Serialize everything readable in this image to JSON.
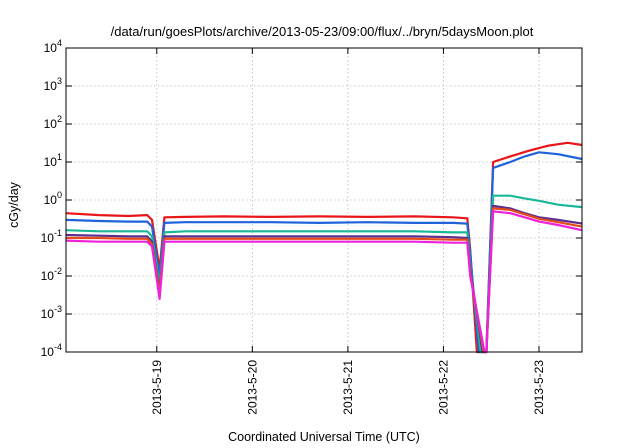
{
  "chart_data": {
    "type": "line",
    "title": "/data/run/goesPlots/archive/2013-05-23/09:00/flux/../bryn/5daysMoon.plot",
    "xlabel": "Coordinated Universal Time (UTC)",
    "ylabel": "cGy/day",
    "yscale": "log",
    "ylim": [
      0.0001,
      10000
    ],
    "xlim": [
      -0.95,
      4.45
    ],
    "y_ticks": [
      {
        "base": "10",
        "exp": "-4",
        "value": 0.0001
      },
      {
        "base": "10",
        "exp": "-3",
        "value": 0.001
      },
      {
        "base": "10",
        "exp": "-2",
        "value": 0.01
      },
      {
        "base": "10",
        "exp": "-1",
        "value": 0.1
      },
      {
        "base": "10",
        "exp": "0",
        "value": 1
      },
      {
        "base": "10",
        "exp": "1",
        "value": 10
      },
      {
        "base": "10",
        "exp": "2",
        "value": 100
      },
      {
        "base": "10",
        "exp": "3",
        "value": 1000
      },
      {
        "base": "10",
        "exp": "4",
        "value": 10000
      }
    ],
    "x_ticks": [
      {
        "label": "2013-5-19",
        "value": 0
      },
      {
        "label": "2013-5-20",
        "value": 1
      },
      {
        "label": "2013-5-21",
        "value": 2
      },
      {
        "label": "2013-5-22",
        "value": 3
      },
      {
        "label": "2013-5-23",
        "value": 4
      }
    ],
    "grid": true,
    "series": [
      {
        "color": "#e8161a",
        "points": [
          [
            -0.95,
            0.45
          ],
          [
            -0.6,
            0.4
          ],
          [
            -0.3,
            0.38
          ],
          [
            -0.1,
            0.4
          ],
          [
            -0.05,
            0.3
          ],
          [
            0.03,
            0.015
          ],
          [
            0.08,
            0.35
          ],
          [
            0.3,
            0.36
          ],
          [
            0.7,
            0.37
          ],
          [
            1.2,
            0.36
          ],
          [
            1.7,
            0.37
          ],
          [
            2.2,
            0.36
          ],
          [
            2.7,
            0.37
          ],
          [
            3.1,
            0.35
          ],
          [
            3.25,
            0.33
          ],
          [
            3.28,
            0.05
          ],
          [
            3.35,
            0.0001
          ],
          [
            3.45,
            0.0001
          ],
          [
            3.52,
            10
          ],
          [
            3.7,
            14
          ],
          [
            3.9,
            20
          ],
          [
            4.1,
            27
          ],
          [
            4.3,
            32
          ],
          [
            4.45,
            28
          ]
        ]
      },
      {
        "color": "#1f63db",
        "points": [
          [
            -0.95,
            0.3
          ],
          [
            -0.6,
            0.28
          ],
          [
            -0.3,
            0.27
          ],
          [
            -0.1,
            0.27
          ],
          [
            -0.05,
            0.2
          ],
          [
            0.03,
            0.01
          ],
          [
            0.08,
            0.25
          ],
          [
            0.3,
            0.26
          ],
          [
            0.7,
            0.26
          ],
          [
            1.2,
            0.26
          ],
          [
            1.7,
            0.25
          ],
          [
            2.2,
            0.26
          ],
          [
            2.7,
            0.25
          ],
          [
            3.1,
            0.25
          ],
          [
            3.25,
            0.24
          ],
          [
            3.28,
            0.04
          ],
          [
            3.37,
            0.0001
          ],
          [
            3.45,
            0.0001
          ],
          [
            3.52,
            7
          ],
          [
            3.7,
            10
          ],
          [
            3.85,
            14
          ],
          [
            4.0,
            18
          ],
          [
            4.2,
            16
          ],
          [
            4.45,
            12
          ]
        ]
      },
      {
        "color": "#1bb898",
        "points": [
          [
            -0.95,
            0.16
          ],
          [
            -0.6,
            0.15
          ],
          [
            -0.3,
            0.15
          ],
          [
            -0.1,
            0.15
          ],
          [
            -0.05,
            0.11
          ],
          [
            0.03,
            0.006
          ],
          [
            0.08,
            0.14
          ],
          [
            0.3,
            0.15
          ],
          [
            0.7,
            0.15
          ],
          [
            1.2,
            0.15
          ],
          [
            1.7,
            0.15
          ],
          [
            2.2,
            0.15
          ],
          [
            2.7,
            0.15
          ],
          [
            3.1,
            0.14
          ],
          [
            3.25,
            0.14
          ],
          [
            3.28,
            0.02
          ],
          [
            3.39,
            0.0001
          ],
          [
            3.45,
            0.0001
          ],
          [
            3.52,
            1.3
          ],
          [
            3.7,
            1.3
          ],
          [
            3.85,
            1.1
          ],
          [
            4.0,
            0.95
          ],
          [
            4.2,
            0.75
          ],
          [
            4.45,
            0.65
          ]
        ]
      },
      {
        "color": "#5b2f8c",
        "points": [
          [
            -0.95,
            0.12
          ],
          [
            -0.6,
            0.115
          ],
          [
            -0.3,
            0.11
          ],
          [
            -0.1,
            0.11
          ],
          [
            -0.05,
            0.08
          ],
          [
            0.03,
            0.004
          ],
          [
            0.08,
            0.11
          ],
          [
            0.3,
            0.11
          ],
          [
            0.7,
            0.11
          ],
          [
            1.2,
            0.11
          ],
          [
            1.7,
            0.11
          ],
          [
            2.2,
            0.11
          ],
          [
            2.7,
            0.11
          ],
          [
            3.1,
            0.105
          ],
          [
            3.25,
            0.1
          ],
          [
            3.28,
            0.015
          ],
          [
            3.41,
            0.0001
          ],
          [
            3.45,
            0.0001
          ],
          [
            3.52,
            0.7
          ],
          [
            3.7,
            0.6
          ],
          [
            3.85,
            0.45
          ],
          [
            4.0,
            0.35
          ],
          [
            4.2,
            0.3
          ],
          [
            4.45,
            0.24
          ]
        ]
      },
      {
        "color": "#e84a1a",
        "points": [
          [
            -0.95,
            0.1
          ],
          [
            -0.6,
            0.1
          ],
          [
            -0.3,
            0.095
          ],
          [
            -0.1,
            0.095
          ],
          [
            -0.05,
            0.07
          ],
          [
            0.03,
            0.0035
          ],
          [
            0.08,
            0.095
          ],
          [
            0.3,
            0.095
          ],
          [
            0.7,
            0.095
          ],
          [
            1.2,
            0.095
          ],
          [
            1.7,
            0.095
          ],
          [
            2.2,
            0.095
          ],
          [
            2.7,
            0.095
          ],
          [
            3.1,
            0.09
          ],
          [
            3.25,
            0.09
          ],
          [
            3.28,
            0.012
          ],
          [
            3.42,
            0.0001
          ],
          [
            3.45,
            0.0001
          ],
          [
            3.52,
            0.6
          ],
          [
            3.7,
            0.55
          ],
          [
            3.85,
            0.42
          ],
          [
            4.0,
            0.32
          ],
          [
            4.2,
            0.26
          ],
          [
            4.45,
            0.2
          ]
        ]
      },
      {
        "color": "#ee22dd",
        "points": [
          [
            -0.95,
            0.085
          ],
          [
            -0.6,
            0.08
          ],
          [
            -0.3,
            0.08
          ],
          [
            -0.1,
            0.08
          ],
          [
            -0.05,
            0.06
          ],
          [
            0.03,
            0.0025
          ],
          [
            0.08,
            0.08
          ],
          [
            0.3,
            0.08
          ],
          [
            0.7,
            0.08
          ],
          [
            1.2,
            0.08
          ],
          [
            1.7,
            0.08
          ],
          [
            2.2,
            0.08
          ],
          [
            2.7,
            0.08
          ],
          [
            3.1,
            0.075
          ],
          [
            3.25,
            0.075
          ],
          [
            3.28,
            0.01
          ],
          [
            3.43,
            0.0001
          ],
          [
            3.45,
            0.0001
          ],
          [
            3.52,
            0.5
          ],
          [
            3.7,
            0.45
          ],
          [
            3.85,
            0.35
          ],
          [
            4.0,
            0.27
          ],
          [
            4.2,
            0.22
          ],
          [
            4.45,
            0.16
          ]
        ]
      }
    ]
  }
}
